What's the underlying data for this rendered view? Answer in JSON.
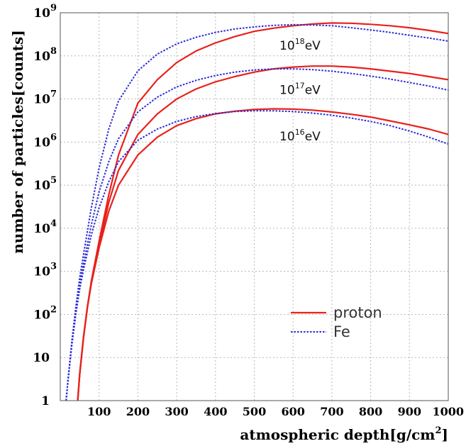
{
  "chart_data": {
    "type": "line",
    "xlabel": "atmospheric depth[g/cm",
    "xlabel_sup": "2",
    "xlabel_end": "]",
    "ylabel": "number of particles[counts]",
    "xlim": [
      0,
      1000
    ],
    "ylim": [
      1,
      1000000000
    ],
    "y_scale": "log",
    "grid": true,
    "legend_position": "bottom-right",
    "x_ticks": [
      "100",
      "200",
      "300",
      "400",
      "500",
      "600",
      "700",
      "800",
      "900",
      "1000"
    ],
    "y_ticks": [
      {
        "base": "1",
        "exp": ""
      },
      {
        "base": "10",
        "exp": ""
      },
      {
        "base": "10",
        "exp": "2"
      },
      {
        "base": "10",
        "exp": "3"
      },
      {
        "base": "10",
        "exp": "4"
      },
      {
        "base": "10",
        "exp": "5"
      },
      {
        "base": "10",
        "exp": "6"
      },
      {
        "base": "10",
        "exp": "7"
      },
      {
        "base": "10",
        "exp": "8"
      },
      {
        "base": "10",
        "exp": "9"
      }
    ],
    "legend": [
      {
        "name": "proton",
        "color": "#e8211b",
        "style": "solid"
      },
      {
        "name": "Fe",
        "color": "#2b2bd6",
        "style": "dotted"
      }
    ],
    "annotations": [
      {
        "base": "10",
        "exp": "18",
        "unit": "eV",
        "x": 565,
        "y": 140000000
      },
      {
        "base": "10",
        "exp": "17",
        "unit": "eV",
        "x": 565,
        "y": 13000000
      },
      {
        "base": "10",
        "exp": "16",
        "unit": "eV",
        "x": 565,
        "y": 1100000
      }
    ],
    "series": [
      {
        "legend": "proton",
        "energy": "10^18 eV",
        "color": "#e8211b",
        "style": "solid",
        "x": [
          45,
          50,
          60,
          70,
          80,
          100,
          125,
          150,
          200,
          250,
          300,
          350,
          400,
          450,
          500,
          550,
          600,
          650,
          700,
          750,
          800,
          850,
          900,
          950,
          1000
        ],
        "y": [
          1,
          4,
          30,
          150,
          600,
          5000,
          60000,
          500000,
          8000000,
          28000000,
          70000000,
          130000000,
          200000000,
          280000000,
          370000000,
          440000000,
          500000000,
          550000000,
          580000000,
          570000000,
          540000000,
          500000000,
          450000000,
          390000000,
          330000000
        ]
      },
      {
        "legend": "proton",
        "energy": "10^17 eV",
        "color": "#e8211b",
        "style": "solid",
        "x": [
          45,
          50,
          60,
          70,
          80,
          100,
          125,
          150,
          200,
          250,
          300,
          350,
          400,
          450,
          500,
          550,
          600,
          650,
          700,
          750,
          800,
          850,
          900,
          950,
          1000
        ],
        "y": [
          1,
          4,
          30,
          150,
          550,
          4000,
          40000,
          220000,
          1500000,
          4500000,
          10000000,
          17000000,
          25000000,
          33000000,
          42000000,
          50000000,
          55000000,
          58000000,
          58000000,
          55000000,
          50000000,
          44000000,
          39000000,
          33000000,
          28000000
        ]
      },
      {
        "legend": "proton",
        "energy": "10^16 eV",
        "color": "#e8211b",
        "style": "solid",
        "x": [
          45,
          50,
          60,
          70,
          80,
          100,
          125,
          150,
          200,
          250,
          300,
          350,
          400,
          450,
          500,
          550,
          600,
          650,
          700,
          750,
          800,
          850,
          900,
          950,
          1000
        ],
        "y": [
          1,
          4,
          30,
          150,
          520,
          3500,
          25000,
          100000,
          500000,
          1300000,
          2400000,
          3500000,
          4500000,
          5200000,
          5700000,
          5900000,
          5800000,
          5500000,
          5000000,
          4400000,
          3800000,
          3100000,
          2500000,
          2000000,
          1500000
        ]
      },
      {
        "legend": "Fe",
        "energy": "10^18 eV",
        "color": "#2b2bd6",
        "style": "dotted",
        "x": [
          15,
          20,
          30,
          40,
          50,
          60,
          80,
          100,
          125,
          150,
          200,
          250,
          300,
          350,
          400,
          450,
          500,
          550,
          600,
          650,
          700,
          750,
          800,
          850,
          900,
          950,
          1000
        ],
        "y": [
          1,
          3,
          25,
          150,
          700,
          2500,
          30000,
          250000,
          2000000,
          9000000,
          45000000,
          110000000,
          190000000,
          270000000,
          350000000,
          420000000,
          470000000,
          510000000,
          530000000,
          520000000,
          500000000,
          450000000,
          400000000,
          350000000,
          300000000,
          260000000,
          220000000
        ]
      },
      {
        "legend": "Fe",
        "energy": "10^17 eV",
        "color": "#2b2bd6",
        "style": "dotted",
        "x": [
          15,
          20,
          30,
          40,
          50,
          60,
          80,
          100,
          125,
          150,
          200,
          250,
          300,
          350,
          400,
          450,
          500,
          550,
          600,
          650,
          700,
          750,
          800,
          850,
          900,
          950,
          1000
        ],
        "y": [
          1,
          3,
          22,
          120,
          500,
          1500,
          12000,
          70000,
          350000,
          1200000,
          5000000,
          11000000,
          19000000,
          27000000,
          35000000,
          42000000,
          47000000,
          50000000,
          50000000,
          48000000,
          44000000,
          39000000,
          34000000,
          29000000,
          24000000,
          20000000,
          16000000
        ]
      },
      {
        "legend": "Fe",
        "energy": "10^16 eV",
        "color": "#2b2bd6",
        "style": "dotted",
        "x": [
          15,
          20,
          30,
          40,
          50,
          60,
          80,
          100,
          125,
          150,
          200,
          250,
          300,
          350,
          400,
          450,
          500,
          550,
          600,
          650,
          700,
          750,
          800,
          850,
          900,
          950,
          1000
        ],
        "y": [
          1,
          3,
          20,
          100,
          380,
          1100,
          7000,
          30000,
          120000,
          350000,
          1100000,
          2000000,
          3000000,
          3900000,
          4600000,
          5100000,
          5300000,
          5300000,
          5100000,
          4700000,
          4200000,
          3600000,
          3000000,
          2400000,
          1800000,
          1300000,
          900000
        ]
      }
    ]
  }
}
